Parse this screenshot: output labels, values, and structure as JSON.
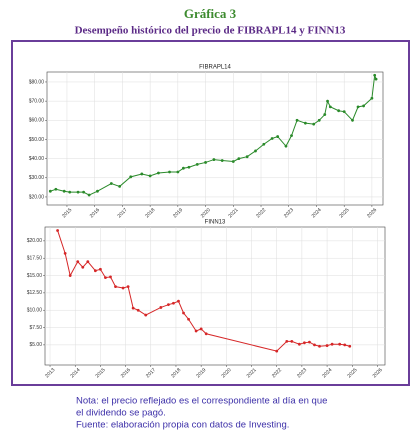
{
  "header": {
    "title": "Gráfica 3",
    "subtitle": "Desempeño histórico del precio de FIBRAPL14 y FINN13"
  },
  "chart_data": [
    {
      "type": "line",
      "title": "FIBRAPL14",
      "grid": true,
      "xlim": [
        2014.28,
        2026.4
      ],
      "xticks": [
        2015,
        2016,
        2017,
        2018,
        2019,
        2020,
        2021,
        2022,
        2023,
        2024,
        2025,
        2026
      ],
      "ylim": [
        15.8,
        85.2
      ],
      "yticks": [
        {
          "value": 20,
          "label": "$20.00"
        },
        {
          "value": 30,
          "label": "$30.00"
        },
        {
          "value": 40,
          "label": "$40.00"
        },
        {
          "value": 50,
          "label": "$50.00"
        },
        {
          "value": 60,
          "label": "$60.00"
        },
        {
          "value": 70,
          "label": "$70.00"
        },
        {
          "value": 80,
          "label": "$80.00"
        }
      ],
      "series": [
        {
          "color": "#2a8a2a",
          "x": [
            2014.4,
            2014.6,
            2014.9,
            2015.1,
            2015.4,
            2015.6,
            2015.8,
            2016.1,
            2016.6,
            2016.9,
            2017.3,
            2017.7,
            2018.0,
            2018.3,
            2018.7,
            2019.0,
            2019.2,
            2019.4,
            2019.7,
            2020.0,
            2020.3,
            2020.6,
            2021.0,
            2021.2,
            2021.5,
            2021.8,
            2022.1,
            2022.4,
            2022.6,
            2022.9,
            2023.1,
            2023.3,
            2023.6,
            2023.9,
            2024.1,
            2024.3,
            2024.4,
            2024.5,
            2024.8,
            2025.0,
            2025.3,
            2025.5,
            2025.7,
            2026.0,
            2026.1,
            2026.15
          ],
          "values": [
            23,
            24,
            23,
            22.5,
            22.5,
            22.5,
            21,
            23,
            27,
            25.5,
            30.5,
            32,
            31,
            32.5,
            33,
            33,
            35,
            35.5,
            37,
            38,
            39.5,
            39,
            38.5,
            40,
            41,
            44,
            47.5,
            50.5,
            51.5,
            46.5,
            52,
            60,
            58.5,
            58,
            60,
            63,
            70,
            67,
            65,
            64.5,
            60,
            67,
            67.5,
            71.5,
            83.5,
            81.5
          ]
        }
      ]
    },
    {
      "type": "line",
      "title": "FINN13",
      "grid": true,
      "xlim": [
        2012.8,
        2026.3
      ],
      "xticks": [
        2013,
        2014,
        2015,
        2016,
        2017,
        2018,
        2019,
        2020,
        2021,
        2022,
        2023,
        2024,
        2025,
        2026
      ],
      "ylim": [
        2.1,
        22.0
      ],
      "yticks": [
        {
          "value": 5,
          "label": "$5.00"
        },
        {
          "value": 7.5,
          "label": "$7.50"
        },
        {
          "value": 10,
          "label": "$10.00"
        },
        {
          "value": 12.5,
          "label": "$12.50"
        },
        {
          "value": 15,
          "label": "$15.00"
        },
        {
          "value": 17.5,
          "label": "$17.50"
        },
        {
          "value": 20,
          "label": "$20.00"
        }
      ],
      "series": [
        {
          "color": "#d62728",
          "x": [
            2013.3,
            2013.6,
            2013.8,
            2014.1,
            2014.3,
            2014.5,
            2014.8,
            2015.0,
            2015.2,
            2015.4,
            2015.6,
            2015.9,
            2016.1,
            2016.3,
            2016.5,
            2016.8,
            2017.4,
            2017.7,
            2017.9,
            2018.1,
            2018.3,
            2018.5,
            2018.8,
            2019.0,
            2019.2,
            2022.0,
            2022.4,
            2022.6,
            2022.9,
            2023.1,
            2023.3,
            2023.5,
            2023.7,
            2024.0,
            2024.2,
            2024.5,
            2024.7,
            2024.9
          ],
          "values": [
            21.5,
            18.2,
            15,
            17,
            16.2,
            17,
            15.7,
            15.9,
            14.7,
            14.8,
            13.4,
            13.2,
            13.4,
            10.3,
            10,
            9.3,
            10.4,
            10.8,
            11,
            11.3,
            9.6,
            8.7,
            7,
            7.3,
            6.6,
            4.1,
            5.5,
            5.5,
            5.1,
            5.3,
            5.4,
            5,
            4.8,
            4.9,
            5.1,
            5.1,
            5,
            4.8
          ]
        }
      ]
    }
  ],
  "notes": [
    "Nota: el precio reflejado es el correspondiente al día en que",
    "el dividendo se pagó.",
    "Fuente: elaboración propia con datos de Investing."
  ]
}
